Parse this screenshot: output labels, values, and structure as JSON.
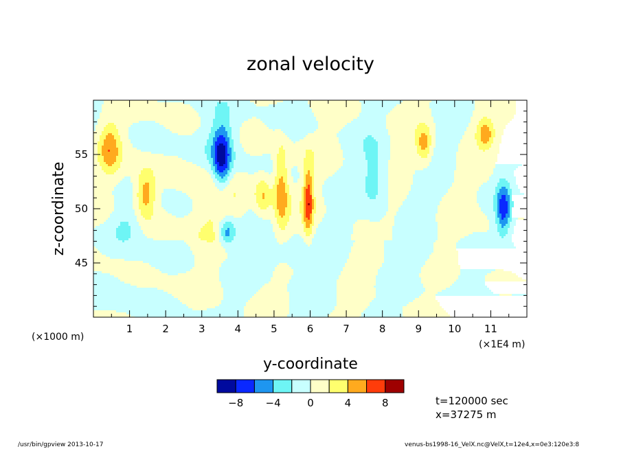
{
  "chart_data": {
    "type": "heatmap",
    "title": "zonal velocity",
    "xlabel": "y-coordinate",
    "ylabel": "z-coordinate",
    "x_unit_label": "(×1E4 m)",
    "y_unit_label": "(×1000 m)",
    "xlim": [
      0,
      12
    ],
    "ylim": [
      40,
      60
    ],
    "x_ticks": [
      1,
      2,
      3,
      4,
      5,
      6,
      7,
      8,
      9,
      10,
      11
    ],
    "y_ticks": [
      45,
      50,
      55
    ],
    "colorbar": {
      "levels": [
        -10,
        -8,
        -6,
        -4,
        -2,
        0,
        2,
        4,
        6,
        8,
        10
      ],
      "tick_labels": [
        "−8",
        "−4",
        "0",
        "4",
        "8"
      ],
      "tick_values": [
        -8,
        -4,
        0,
        4,
        8
      ],
      "colors": [
        "#000a9e",
        "#0a28ff",
        "#1e96f0",
        "#6ef5f5",
        "#c8ffff",
        "#ffffc8",
        "#ffff6e",
        "#ffaa1e",
        "#ff3c0a",
        "#9e0000"
      ]
    },
    "features": [
      {
        "x": 0.45,
        "z": 55.6,
        "value": 5.2,
        "sx": 0.22,
        "sz": 1.7
      },
      {
        "x": 1.45,
        "z": 51.4,
        "value": 5.5,
        "sx": 0.2,
        "sz": 1.5
      },
      {
        "x": 3.55,
        "z": 54.6,
        "value": -7.5,
        "sx": 0.17,
        "sz": 2.0
      },
      {
        "x": 3.55,
        "z": 55.8,
        "value": -3.0,
        "sx": 0.4,
        "sz": 2.5
      },
      {
        "x": 5.2,
        "z": 51.8,
        "value": 5.8,
        "sx": 0.15,
        "sz": 2.8
      },
      {
        "x": 4.7,
        "z": 51.3,
        "value": 4.2,
        "sx": 0.16,
        "sz": 1.4
      },
      {
        "x": 5.95,
        "z": 50.7,
        "value": 6.8,
        "sx": 0.1,
        "sz": 2.4
      },
      {
        "x": 3.7,
        "z": 47.8,
        "value": -6.5,
        "sx": 0.18,
        "sz": 0.9
      },
      {
        "x": 9.15,
        "z": 56.0,
        "value": 5.0,
        "sx": 0.15,
        "sz": 1.2
      },
      {
        "x": 10.85,
        "z": 56.9,
        "value": 5.0,
        "sx": 0.18,
        "sz": 1.0
      },
      {
        "x": 11.35,
        "z": 50.0,
        "value": -7.0,
        "sx": 0.15,
        "sz": 1.8
      },
      {
        "x": 3.4,
        "z": 50.5,
        "value": 2.5,
        "sx": 0.5,
        "sz": 3.5
      },
      {
        "x": 7.8,
        "z": 52.5,
        "value": -3.0,
        "sx": 0.25,
        "sz": 2.5
      },
      {
        "x": 5.4,
        "z": 46.0,
        "value": -2.5,
        "sx": 0.6,
        "sz": 1.0
      },
      {
        "x": 0.9,
        "z": 48.5,
        "value": -2.5,
        "sx": 0.3,
        "sz": 1.2
      }
    ]
  },
  "annotations": {
    "time": "t=120000 sec",
    "position": "x=37275 m"
  },
  "footer": {
    "left": "/usr/bin/gpview  2013-10-17",
    "right": "venus-bs1998-16_VelX.nc@VelX,t=12e4,x=0e3:120e3:8"
  }
}
